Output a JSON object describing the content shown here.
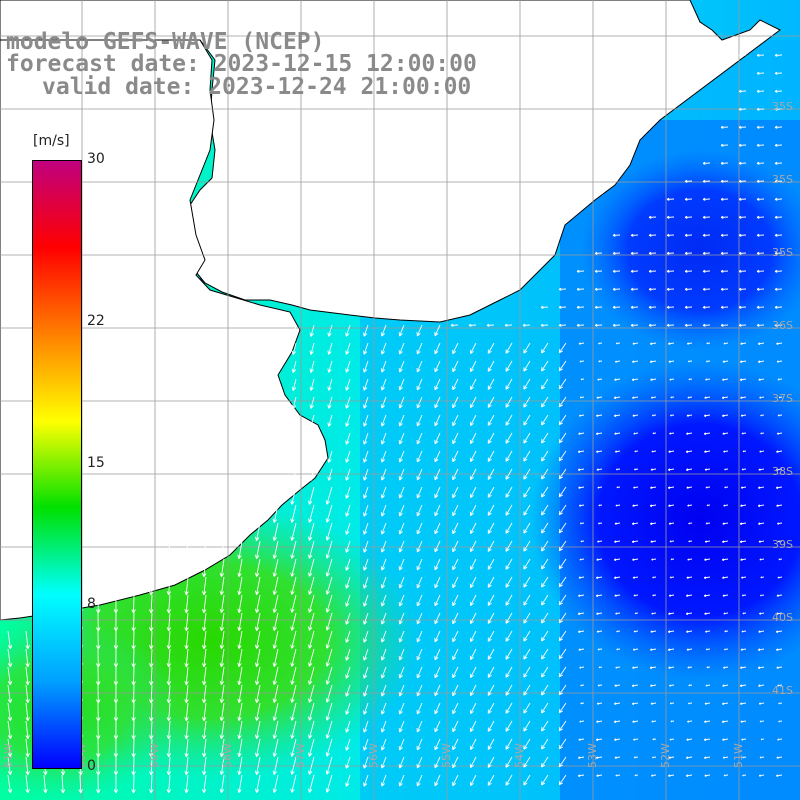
{
  "title": {
    "line1": "modelo GEFS-WAVE (NCEP)",
    "line2": "forecast date: 2023-12-15 12:00:00",
    "line3": "valid date: 2023-12-24 21:00:00"
  },
  "colorbar": {
    "unit": "[m/s]",
    "ticks": [
      "30",
      "22",
      "15",
      "8",
      "0"
    ],
    "tick_values": [
      30,
      22,
      15,
      8,
      0
    ],
    "colors": [
      "#0000ff",
      "#00a0ff",
      "#00ffff",
      "#00e000",
      "#ffff00",
      "#ff8000",
      "#ff0000",
      "#c0007f"
    ],
    "range": [
      0,
      30
    ]
  },
  "map": {
    "lat_labels": [
      "35S",
      "35S",
      "35S",
      "36S",
      "37S",
      "38S",
      "39S",
      "40S",
      "41S"
    ],
    "lon_labels": [
      "61W",
      "60W",
      "59W",
      "58W",
      "57W",
      "56W",
      "55W",
      "54W",
      "53W",
      "52W",
      "51W"
    ],
    "colors": {
      "land": "#ffffff",
      "coast": "#000000",
      "grid": "#9a9a9a",
      "vectors": "#ffffff"
    }
  }
}
